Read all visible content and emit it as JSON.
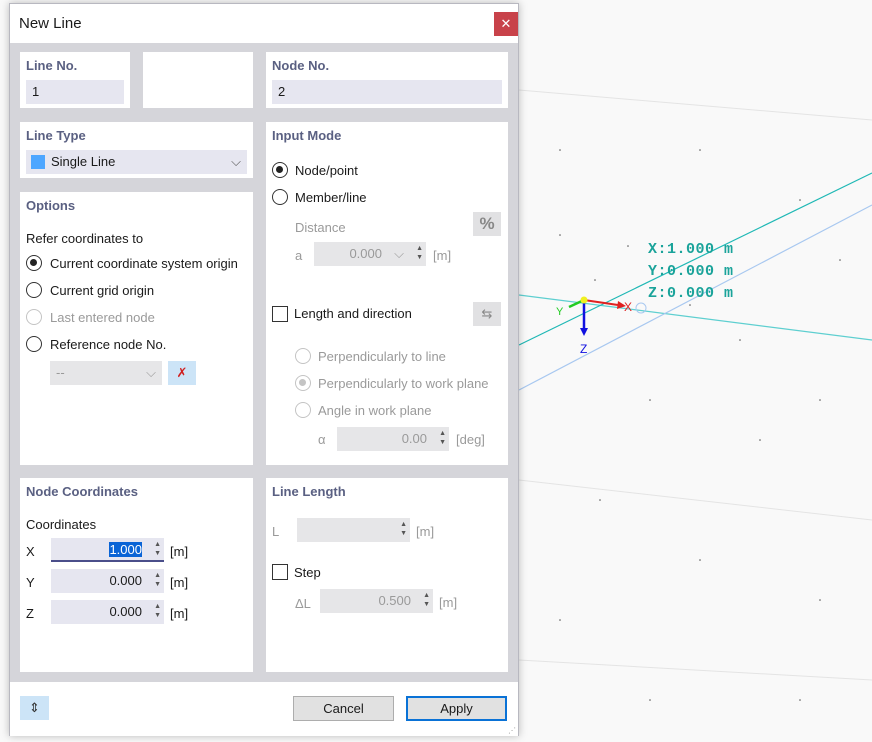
{
  "dialog": {
    "title": "New Line",
    "close_icon": "close-icon"
  },
  "line_no": {
    "label": "Line No.",
    "value": "1"
  },
  "node_no": {
    "label": "Node No.",
    "value": "2"
  },
  "line_type": {
    "label": "Line Type",
    "value": "Single Line",
    "color": "#4da6ff"
  },
  "options": {
    "label": "Options",
    "refer_label": "Refer coordinates to",
    "choices": [
      "Current coordinate system origin",
      "Current grid origin",
      "Last entered node",
      "Reference node No."
    ],
    "selected": 0,
    "ref_node_value": "--"
  },
  "input_mode": {
    "label": "Input Mode",
    "choices": [
      "Node/point",
      "Member/line"
    ],
    "selected": 0,
    "distance_label": "Distance",
    "a_label": "a",
    "a_value": "0.000",
    "a_unit": "[m]",
    "percent_label": "%",
    "length_dir_label": "Length and direction",
    "dir_choices": [
      "Perpendicularly to line",
      "Perpendicularly to work plane",
      "Angle in work plane"
    ],
    "alpha_label": "α",
    "alpha_value": "0.00",
    "alpha_unit": "[deg]"
  },
  "node_coords": {
    "label": "Node Coordinates",
    "coords_label": "Coordinates",
    "rows": [
      {
        "axis": "X",
        "value": "1.000",
        "unit": "[m]"
      },
      {
        "axis": "Y",
        "value": "0.000",
        "unit": "[m]"
      },
      {
        "axis": "Z",
        "value": "0.000",
        "unit": "[m]"
      }
    ]
  },
  "line_length": {
    "label": "Line Length",
    "l_label": "L",
    "l_value": "",
    "l_unit": "[m]",
    "step_label": "Step",
    "dl_label": "ΔL",
    "dl_value": "0.500",
    "dl_unit": "[m]"
  },
  "footer": {
    "cancel": "Cancel",
    "apply": "Apply"
  },
  "viewport": {
    "x_readout": "X:1.000 m",
    "y_readout": "Y:0.000 m",
    "z_readout": "Z:0.000 m",
    "axis_x": "X",
    "axis_y": "Y",
    "axis_z": "Z"
  }
}
